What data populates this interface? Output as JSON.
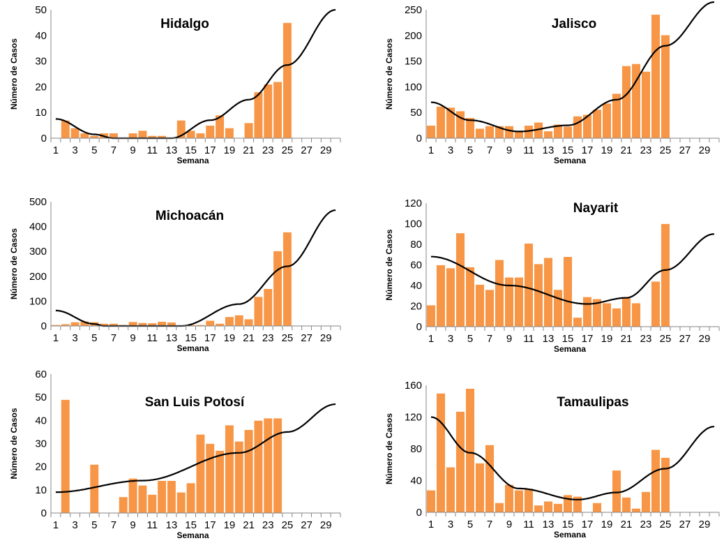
{
  "chart_data": [
    {
      "type": "bar",
      "title": "Hidalgo",
      "xlabel": "Semana",
      "ylabel": "Número de Casos",
      "ylim": [
        0,
        50
      ],
      "y_ticks": [
        0,
        10,
        20,
        30,
        40,
        50
      ],
      "x_ticks": [
        1,
        3,
        5,
        7,
        9,
        11,
        13,
        15,
        17,
        19,
        21,
        23,
        25,
        27,
        29
      ],
      "x": [
        1,
        2,
        3,
        4,
        5,
        6,
        7,
        8,
        9,
        10,
        11,
        12,
        13,
        14,
        15,
        16,
        17,
        18,
        19,
        20,
        21,
        22,
        23,
        24,
        25
      ],
      "values": [
        0,
        7,
        4,
        2,
        1,
        2,
        2,
        0,
        2,
        3,
        1,
        1,
        0,
        7,
        3,
        2,
        5,
        9,
        4,
        0,
        6,
        18,
        21,
        22,
        45
      ],
      "trendline": {
        "type": "polynomial-2",
        "color": "#000000",
        "x_range": [
          1,
          30
        ],
        "points": [
          [
            1,
            7.5
          ],
          [
            5,
            1.5
          ],
          [
            7,
            0
          ],
          [
            13,
            0
          ],
          [
            17,
            7
          ],
          [
            21,
            15
          ],
          [
            25,
            28.5
          ],
          [
            30,
            50
          ]
        ]
      },
      "bar_color": "#F79646"
    },
    {
      "type": "bar",
      "title": "Jalisco",
      "xlabel": "Semana",
      "ylabel": "Número de Casos",
      "ylim": [
        0,
        250
      ],
      "y_ticks": [
        0,
        50,
        100,
        150,
        200,
        250
      ],
      "x_ticks": [
        1,
        3,
        5,
        7,
        9,
        11,
        13,
        15,
        17,
        19,
        21,
        23,
        25,
        27,
        29
      ],
      "x": [
        1,
        2,
        3,
        4,
        5,
        6,
        7,
        8,
        9,
        10,
        11,
        12,
        13,
        14,
        15,
        16,
        17,
        18,
        19,
        20,
        21,
        22,
        23,
        24,
        25
      ],
      "values": [
        25,
        62,
        60,
        53,
        40,
        19,
        24,
        24,
        24,
        15,
        25,
        31,
        14,
        27,
        23,
        43,
        46,
        56,
        68,
        87,
        141,
        145,
        130,
        241,
        201
      ],
      "trendline": {
        "type": "polynomial-2",
        "color": "#000000",
        "x_range": [
          1,
          30
        ],
        "points": [
          [
            1,
            70
          ],
          [
            5,
            35
          ],
          [
            10,
            13
          ],
          [
            15,
            25
          ],
          [
            20,
            75
          ],
          [
            25,
            180
          ],
          [
            30,
            265
          ]
        ]
      },
      "bar_color": "#F79646"
    },
    {
      "type": "bar",
      "title": "Michoacán",
      "xlabel": "Semana",
      "ylabel": "Número de Casos",
      "ylim": [
        0,
        500
      ],
      "y_ticks": [
        0,
        100,
        200,
        300,
        400,
        500
      ],
      "x_ticks": [
        1,
        3,
        5,
        7,
        9,
        11,
        13,
        15,
        17,
        19,
        21,
        23,
        25,
        27,
        29
      ],
      "x": [
        1,
        2,
        3,
        4,
        5,
        6,
        7,
        8,
        9,
        10,
        11,
        12,
        13,
        14,
        15,
        16,
        17,
        18,
        19,
        20,
        21,
        22,
        23,
        24,
        25
      ],
      "values": [
        5,
        8,
        16,
        19,
        16,
        10,
        10,
        5,
        17,
        13,
        12,
        18,
        15,
        0,
        5,
        5,
        22,
        10,
        37,
        44,
        28,
        118,
        150,
        302,
        378
      ],
      "trendline": {
        "type": "polynomial-2",
        "color": "#000000",
        "x_range": [
          1,
          30
        ],
        "points": [
          [
            1,
            62
          ],
          [
            5,
            8
          ],
          [
            6,
            0
          ],
          [
            14,
            0
          ],
          [
            20,
            88
          ],
          [
            25,
            240
          ],
          [
            30,
            466
          ]
        ]
      },
      "bar_color": "#F79646"
    },
    {
      "type": "bar",
      "title": "Nayarit",
      "xlabel": "Semana",
      "ylabel": "Número de Casos",
      "ylim": [
        0,
        120
      ],
      "y_ticks": [
        0,
        20,
        40,
        60,
        80,
        100,
        120
      ],
      "x_ticks": [
        1,
        3,
        5,
        7,
        9,
        11,
        13,
        15,
        17,
        19,
        21,
        23,
        25,
        27,
        29
      ],
      "x": [
        1,
        2,
        3,
        4,
        5,
        6,
        7,
        8,
        9,
        10,
        11,
        12,
        13,
        14,
        15,
        16,
        17,
        18,
        19,
        20,
        21,
        22,
        23,
        24,
        25
      ],
      "values": [
        21,
        60,
        57,
        91,
        58,
        41,
        36,
        65,
        48,
        48,
        81,
        61,
        67,
        36,
        68,
        9,
        29,
        27,
        23,
        18,
        29,
        23,
        0,
        44,
        100
      ],
      "trendline": {
        "type": "polynomial-2",
        "color": "#000000",
        "x_range": [
          1,
          30
        ],
        "points": [
          [
            1,
            68
          ],
          [
            9,
            40
          ],
          [
            17,
            22
          ],
          [
            21,
            28
          ],
          [
            25,
            55
          ],
          [
            30,
            90
          ]
        ]
      },
      "bar_color": "#F79646"
    },
    {
      "type": "bar",
      "title": "San Luis Potosí",
      "xlabel": "Semana",
      "ylabel": "Número de Casos",
      "ylim": [
        0,
        60
      ],
      "y_ticks": [
        0,
        10,
        20,
        30,
        40,
        50,
        60
      ],
      "x_ticks": [
        1,
        3,
        5,
        7,
        9,
        11,
        13,
        15,
        17,
        19,
        21,
        23,
        25,
        27,
        29
      ],
      "x": [
        1,
        2,
        3,
        4,
        5,
        6,
        7,
        8,
        9,
        10,
        11,
        12,
        13,
        14,
        15,
        16,
        17,
        18,
        19,
        20,
        21,
        22,
        23,
        24,
        25
      ],
      "values": [
        0,
        49,
        0,
        0,
        21,
        0,
        0,
        7,
        15,
        12,
        8,
        14,
        14,
        9,
        13,
        34,
        30,
        27,
        38,
        31,
        36,
        40,
        41,
        41,
        0
      ],
      "trendline": {
        "type": "polynomial-2",
        "color": "#000000",
        "x_range": [
          1,
          30
        ],
        "points": [
          [
            1,
            9
          ],
          [
            10,
            14
          ],
          [
            20,
            26
          ],
          [
            25,
            35
          ],
          [
            30,
            47
          ]
        ]
      },
      "bar_color": "#F79646"
    },
    {
      "type": "bar",
      "title": "Tamaulipas",
      "xlabel": "Semana",
      "ylabel": "Número de Casos",
      "ylim": [
        0,
        160
      ],
      "y_ticks": [
        0,
        40,
        80,
        120,
        160
      ],
      "x_ticks": [
        1,
        3,
        5,
        7,
        9,
        11,
        13,
        15,
        17,
        19,
        21,
        23,
        25,
        27,
        29
      ],
      "x": [
        1,
        2,
        3,
        4,
        5,
        6,
        7,
        8,
        9,
        10,
        11,
        12,
        13,
        14,
        15,
        16,
        17,
        18,
        19,
        20,
        21,
        22,
        23,
        24,
        25
      ],
      "values": [
        28,
        150,
        57,
        127,
        156,
        62,
        85,
        12,
        35,
        28,
        30,
        9,
        14,
        11,
        22,
        20,
        0,
        12,
        0,
        53,
        19,
        5,
        26,
        79,
        69
      ],
      "trendline": {
        "type": "polynomial-2",
        "color": "#000000",
        "x_range": [
          1,
          30
        ],
        "points": [
          [
            1,
            120
          ],
          [
            5,
            75
          ],
          [
            10,
            30
          ],
          [
            16,
            16
          ],
          [
            20,
            25
          ],
          [
            25,
            55
          ],
          [
            30,
            108
          ]
        ]
      },
      "bar_color": "#F79646"
    }
  ]
}
